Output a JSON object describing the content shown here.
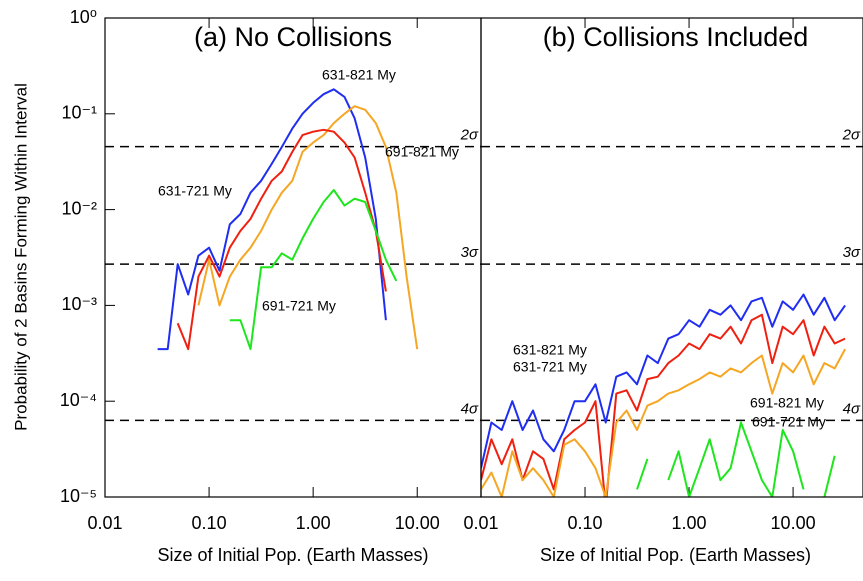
{
  "chart_data": [
    {
      "type": "line",
      "title": "(a) No Collisions",
      "xlabel": "Size of Initial Pop. (Earth Masses)",
      "ylabel": "Probability of 2 Basins Forming Within Interval",
      "xscale": "log",
      "yscale": "log",
      "xlim": [
        0.01,
        41
      ],
      "ylim": [
        1e-05,
        1
      ],
      "xticks": [
        0.01,
        {
          "value": 0.1,
          "label": "0.10"
        },
        {
          "value": 1,
          "label": "1.00"
        },
        {
          "value": 10,
          "label": "10.00"
        }
      ],
      "yticks": [
        {
          "value": 1,
          "label": "10⁰"
        },
        {
          "value": 0.1,
          "label": "10⁻¹"
        },
        {
          "value": 0.01,
          "label": "10⁻²"
        },
        {
          "value": 0.001,
          "label": "10⁻³"
        },
        {
          "value": 0.0001,
          "label": "10⁻⁴"
        },
        {
          "value": 1e-05,
          "label": "10⁻⁵"
        }
      ],
      "hlines": [
        {
          "value": 0.0455,
          "label": "2σ"
        },
        {
          "value": 0.0027,
          "label": "3σ"
        },
        {
          "value": 6.3e-05,
          "label": "4σ"
        }
      ],
      "x": [
        0.025,
        0.032,
        0.04,
        0.05,
        0.063,
        0.079,
        0.1,
        0.126,
        0.158,
        0.2,
        0.25,
        0.316,
        0.4,
        0.5,
        0.63,
        0.79,
        1,
        1.26,
        1.58,
        2,
        2.5,
        3.16,
        4,
        5,
        6.3,
        7.9,
        10
      ],
      "series": [
        {
          "name": "631-821 My",
          "color": "#1f2ef0",
          "values": [
            null,
            0.00035,
            0.00035,
            0.0027,
            0.0013,
            0.0033,
            0.004,
            0.0023,
            0.007,
            0.009,
            0.015,
            0.02,
            0.03,
            0.045,
            0.07,
            0.1,
            0.13,
            0.16,
            0.18,
            0.15,
            0.09,
            0.035,
            0.008,
            0.0007,
            null,
            null,
            null
          ]
        },
        {
          "name": "691-821 My",
          "color": "#f5a623",
          "values": [
            null,
            null,
            null,
            null,
            null,
            0.001,
            0.003,
            0.001,
            0.002,
            0.003,
            0.004,
            0.006,
            0.01,
            0.015,
            0.02,
            0.04,
            0.05,
            0.06,
            0.08,
            0.1,
            0.12,
            0.11,
            0.08,
            0.045,
            0.015,
            0.002,
            0.00035
          ]
        },
        {
          "name": "631-721 My",
          "color": "#f02010",
          "values": [
            null,
            null,
            null,
            0.00065,
            0.00035,
            0.002,
            0.0033,
            0.002,
            0.004,
            0.006,
            0.008,
            0.013,
            0.02,
            0.025,
            0.04,
            0.06,
            0.065,
            0.068,
            0.065,
            0.05,
            0.035,
            0.015,
            0.006,
            0.0014,
            null,
            null,
            null
          ]
        },
        {
          "name": "691-721 My",
          "color": "#1ee61e",
          "values": [
            null,
            null,
            null,
            null,
            null,
            null,
            null,
            null,
            0.0007,
            0.0007,
            0.00035,
            0.0025,
            0.0025,
            0.0035,
            0.003,
            0.005,
            0.008,
            0.012,
            0.016,
            0.011,
            0.013,
            0.012,
            0.006,
            0.003,
            0.0018,
            null,
            null
          ]
        }
      ]
    },
    {
      "type": "line",
      "title": "(b) Collisions Included",
      "xlabel": "Size of Initial Pop. (Earth Masses)",
      "xscale": "log",
      "yscale": "log",
      "xlim": [
        0.01,
        47
      ],
      "ylim": [
        1e-05,
        1
      ],
      "xticks": [
        0.01,
        {
          "value": 0.1,
          "label": "0.10"
        },
        {
          "value": 1,
          "label": "1.00"
        },
        {
          "value": 10,
          "label": "10.00"
        }
      ],
      "hlines": [
        {
          "value": 0.0455,
          "label": "2σ"
        },
        {
          "value": 0.0027,
          "label": "3σ"
        },
        {
          "value": 6.3e-05,
          "label": "4σ"
        }
      ],
      "x": [
        0.01,
        0.0126,
        0.0158,
        0.02,
        0.0251,
        0.0316,
        0.0398,
        0.0501,
        0.0631,
        0.0794,
        0.1,
        0.126,
        0.158,
        0.2,
        0.251,
        0.316,
        0.398,
        0.501,
        0.631,
        0.794,
        1,
        1.26,
        1.58,
        2,
        2.51,
        3.16,
        3.98,
        5.01,
        6.31,
        7.94,
        10,
        12.6,
        15.8,
        20,
        25.1,
        31.6
      ],
      "series": [
        {
          "name": "631-821 My",
          "color": "#1f2ef0",
          "values": [
            2e-05,
            6e-05,
            5e-05,
            0.0001,
            5e-05,
            8e-05,
            4e-05,
            3e-05,
            5e-05,
            0.0001,
            0.0001,
            0.00015,
            6e-05,
            0.00018,
            0.0002,
            0.00015,
            0.0003,
            0.00025,
            0.00045,
            0.0005,
            0.0007,
            0.0006,
            0.0009,
            0.0008,
            0.001,
            0.0007,
            0.0011,
            0.0012,
            0.0006,
            0.0011,
            0.0009,
            0.0013,
            0.0008,
            0.0012,
            0.0007,
            0.001
          ]
        },
        {
          "name": "631-721 My",
          "color": "#f02010",
          "values": [
            1.5e-05,
            4e-05,
            2.2e-05,
            4e-05,
            1.5e-05,
            3e-05,
            2.5e-05,
            1.2e-05,
            4e-05,
            5e-05,
            6e-05,
            0.0001,
            8e-06,
            0.00012,
            0.00013,
            8e-05,
            0.00017,
            0.00018,
            0.00025,
            0.0003,
            0.0004,
            0.00035,
            0.0005,
            0.00045,
            0.0006,
            0.0004,
            0.0007,
            0.0008,
            0.00025,
            0.0006,
            0.0005,
            0.0007,
            0.0003,
            0.0006,
            0.0004,
            0.00045
          ]
        },
        {
          "name": "691-821 My",
          "color": "#f5a623",
          "values": [
            1.2e-05,
            1.8e-05,
            1e-05,
            3e-05,
            1.5e-05,
            2e-05,
            1.5e-05,
            1e-05,
            3.5e-05,
            4e-05,
            3e-05,
            2e-05,
            1e-05,
            6e-05,
            8e-05,
            5e-05,
            9e-05,
            0.0001,
            0.00012,
            0.00013,
            0.00015,
            0.00017,
            0.0002,
            0.00018,
            0.00022,
            0.0002,
            0.00025,
            0.0003,
            0.00012,
            0.00025,
            0.0002,
            0.0003,
            0.00015,
            0.00025,
            0.00022,
            0.00035
          ]
        },
        {
          "name": "691-721 My",
          "color": "#1ee61e",
          "values": [
            1e-05,
            null,
            null,
            null,
            null,
            null,
            null,
            null,
            null,
            null,
            null,
            null,
            null,
            null,
            null,
            1.2e-05,
            2.5e-05,
            null,
            1.5e-05,
            3e-05,
            1e-05,
            2e-05,
            4e-05,
            1.5e-05,
            2e-05,
            6e-05,
            3e-05,
            1.5e-05,
            1e-05,
            5e-05,
            3e-05,
            1.2e-05,
            null,
            1e-05,
            2.7e-05,
            null
          ]
        }
      ]
    }
  ]
}
